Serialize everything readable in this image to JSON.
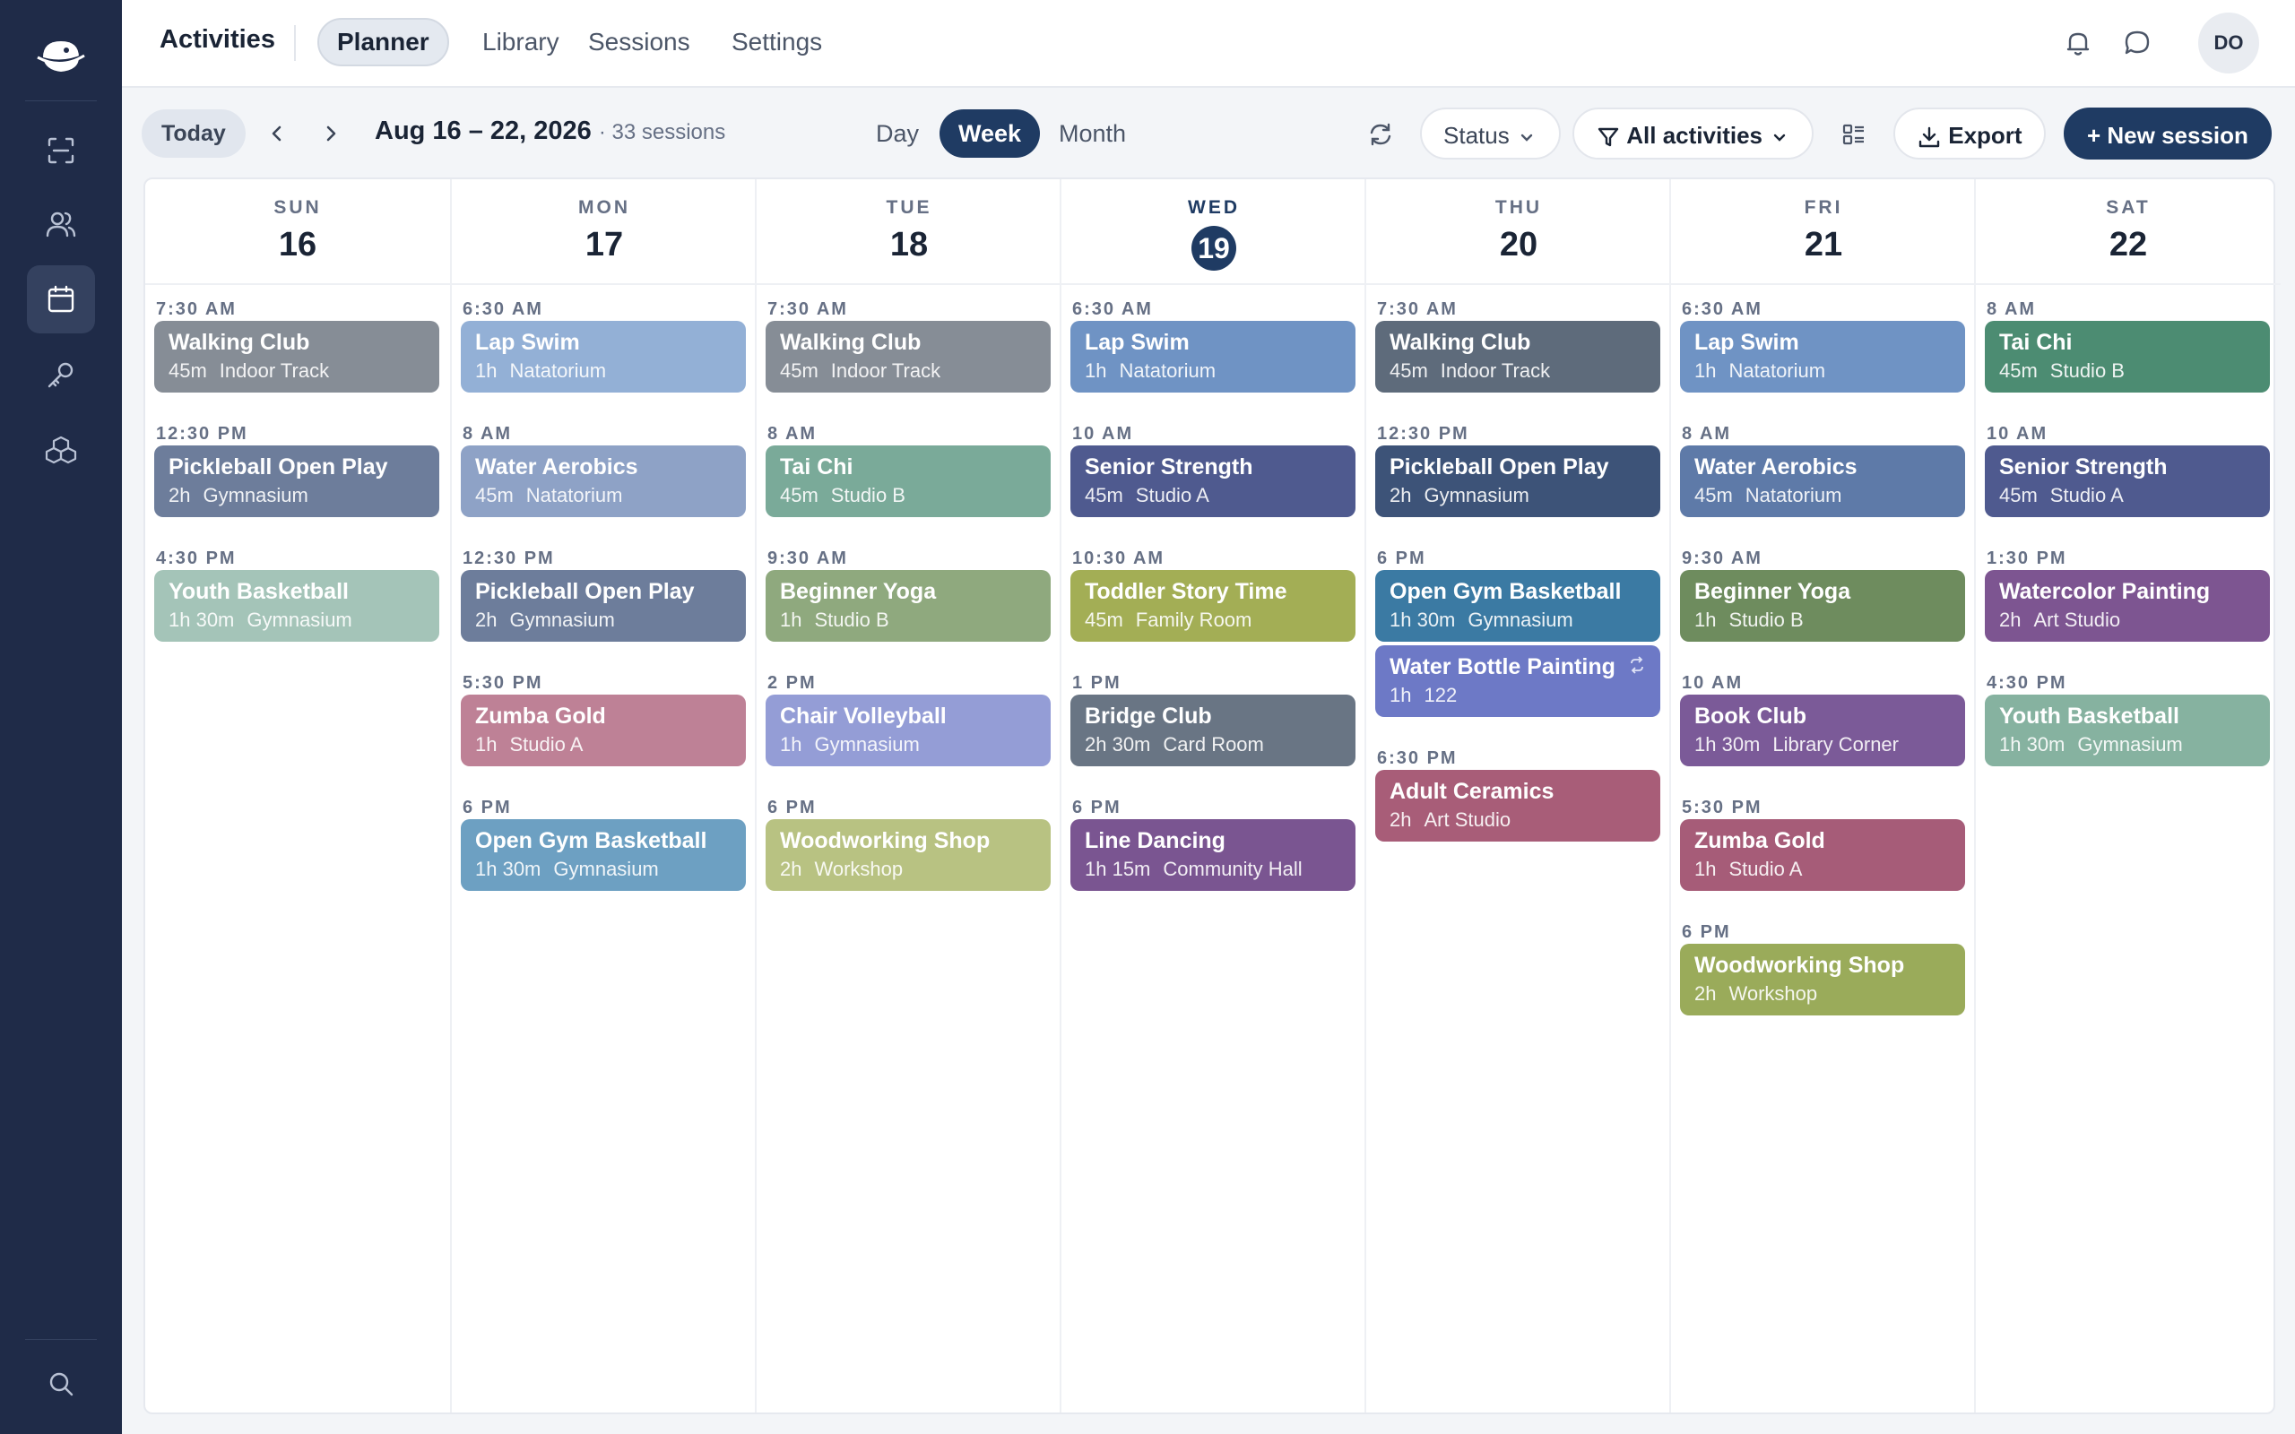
{
  "topbar": {
    "title": "Activities",
    "tabs": [
      {
        "label": "Planner",
        "active": true
      },
      {
        "label": "Library",
        "active": false
      },
      {
        "label": "Sessions",
        "active": false
      },
      {
        "label": "Settings",
        "active": false
      }
    ],
    "avatar_initials": "DO",
    "icons": [
      "bell-icon",
      "chat-icon"
    ]
  },
  "sidebar": {
    "items": [
      {
        "name": "scan-icon",
        "active": false
      },
      {
        "name": "users-icon",
        "active": false
      },
      {
        "name": "calendar-icon",
        "active": true
      },
      {
        "name": "key-icon",
        "active": false
      },
      {
        "name": "boxes-icon",
        "active": false
      }
    ],
    "bottom": "search-icon"
  },
  "toolbar": {
    "today_label": "Today",
    "range": "Aug 16 – 22, 2026",
    "count": "· 33 sessions",
    "views": [
      {
        "label": "Day",
        "active": false
      },
      {
        "label": "Week",
        "active": true
      },
      {
        "label": "Month",
        "active": false
      }
    ],
    "status_label": "Status",
    "filter_label": "All activities",
    "export_label": "Export",
    "new_label": "+ New session"
  },
  "days": [
    {
      "name": "SUN",
      "num": "16",
      "today": false,
      "slots": [
        {
          "time": "7:30 AM",
          "title": "Walking Club",
          "dur": "45m",
          "loc": "Indoor Track",
          "color": "#868d96"
        },
        {
          "time": "12:30 PM",
          "title": "Pickleball Open Play",
          "dur": "2h",
          "loc": "Gymnasium",
          "color": "#6d7d9b"
        },
        {
          "time": "4:30 PM",
          "title": "Youth Basketball",
          "dur": "1h 30m",
          "loc": "Gymnasium",
          "color": "#a4c4b8"
        }
      ]
    },
    {
      "name": "MON",
      "num": "17",
      "today": false,
      "slots": [
        {
          "time": "6:30 AM",
          "title": "Lap Swim",
          "dur": "1h",
          "loc": "Natatorium",
          "color": "#93b0d6"
        },
        {
          "time": "8 AM",
          "title": "Water Aerobics",
          "dur": "45m",
          "loc": "Natatorium",
          "color": "#8ea2c6"
        },
        {
          "time": "12:30 PM",
          "title": "Pickleball Open Play",
          "dur": "2h",
          "loc": "Gymnasium",
          "color": "#6d7d9b"
        },
        {
          "time": "5:30 PM",
          "title": "Zumba Gold",
          "dur": "1h",
          "loc": "Studio A",
          "color": "#be8196"
        },
        {
          "time": "6 PM",
          "title": "Open Gym Basketball",
          "dur": "1h 30m",
          "loc": "Gymnasium",
          "color": "#6da0c2"
        }
      ]
    },
    {
      "name": "TUE",
      "num": "18",
      "today": false,
      "slots": [
        {
          "time": "7:30 AM",
          "title": "Walking Club",
          "dur": "45m",
          "loc": "Indoor Track",
          "color": "#868d96"
        },
        {
          "time": "8 AM",
          "title": "Tai Chi",
          "dur": "45m",
          "loc": "Studio B",
          "color": "#7aaa99"
        },
        {
          "time": "9:30 AM",
          "title": "Beginner Yoga",
          "dur": "1h",
          "loc": "Studio B",
          "color": "#8fa97e"
        },
        {
          "time": "2 PM",
          "title": "Chair Volleyball",
          "dur": "1h",
          "loc": "Gymnasium",
          "color": "#949dd6"
        },
        {
          "time": "6 PM",
          "title": "Woodworking Shop",
          "dur": "2h",
          "loc": "Workshop",
          "color": "#b8c282"
        }
      ]
    },
    {
      "name": "WED",
      "num": "19",
      "today": true,
      "slots": [
        {
          "time": "6:30 AM",
          "title": "Lap Swim",
          "dur": "1h",
          "loc": "Natatorium",
          "color": "#6f93c4"
        },
        {
          "time": "10 AM",
          "title": "Senior Strength",
          "dur": "45m",
          "loc": "Studio A",
          "color": "#4f5a8f"
        },
        {
          "time": "10:30 AM",
          "title": "Toddler Story Time",
          "dur": "45m",
          "loc": "Family Room",
          "color": "#a3ae55"
        },
        {
          "time": "1 PM",
          "title": "Bridge Club",
          "dur": "2h 30m",
          "loc": "Card Room",
          "color": "#697584"
        },
        {
          "time": "6 PM",
          "title": "Line Dancing",
          "dur": "1h 15m",
          "loc": "Community Hall",
          "color": "#7a5591"
        }
      ]
    },
    {
      "name": "THU",
      "num": "20",
      "today": false,
      "slots": [
        {
          "time": "7:30 AM",
          "title": "Walking Club",
          "dur": "45m",
          "loc": "Indoor Track",
          "color": "#5e6b7b"
        },
        {
          "time": "12:30 PM",
          "title": "Pickleball Open Play",
          "dur": "2h",
          "loc": "Gymnasium",
          "color": "#3d5378"
        },
        {
          "time": "6 PM",
          "title": "Open Gym Basketball",
          "dur": "1h 30m",
          "loc": "Gymnasium",
          "color": "#3b7aa3",
          "extra": {
            "title": "Water Bottle Painting",
            "dur": "1h",
            "loc": "122",
            "color": "#6d79c6",
            "repeat": true
          }
        },
        {
          "time": "6:30 PM",
          "title": "Adult Ceramics",
          "dur": "2h",
          "loc": "Art Studio",
          "color": "#a85d78"
        }
      ]
    },
    {
      "name": "FRI",
      "num": "21",
      "today": false,
      "slots": [
        {
          "time": "6:30 AM",
          "title": "Lap Swim",
          "dur": "1h",
          "loc": "Natatorium",
          "color": "#6f93c4"
        },
        {
          "time": "8 AM",
          "title": "Water Aerobics",
          "dur": "45m",
          "loc": "Natatorium",
          "color": "#5e7aa8"
        },
        {
          "time": "9:30 AM",
          "title": "Beginner Yoga",
          "dur": "1h",
          "loc": "Studio B",
          "color": "#6e8c5e"
        },
        {
          "time": "10 AM",
          "title": "Book Club",
          "dur": "1h 30m",
          "loc": "Library Corner",
          "color": "#7b5a98"
        },
        {
          "time": "5:30 PM",
          "title": "Zumba Gold",
          "dur": "1h",
          "loc": "Studio A",
          "color": "#a65c78"
        },
        {
          "time": "6 PM",
          "title": "Woodworking Shop",
          "dur": "2h",
          "loc": "Workshop",
          "color": "#9aab5a"
        }
      ]
    },
    {
      "name": "SAT",
      "num": "22",
      "today": false,
      "slots": [
        {
          "time": "8 AM",
          "title": "Tai Chi",
          "dur": "45m",
          "loc": "Studio B",
          "color": "#4c8c72"
        },
        {
          "time": "10 AM",
          "title": "Senior Strength",
          "dur": "45m",
          "loc": "Studio A",
          "color": "#4f5a8f"
        },
        {
          "time": "1:30 PM",
          "title": "Watercolor Painting",
          "dur": "2h",
          "loc": "Art Studio",
          "color": "#7d5591"
        },
        {
          "time": "4:30 PM",
          "title": "Youth Basketball",
          "dur": "1h 30m",
          "loc": "Gymnasium",
          "color": "#86b2a0"
        }
      ]
    }
  ]
}
